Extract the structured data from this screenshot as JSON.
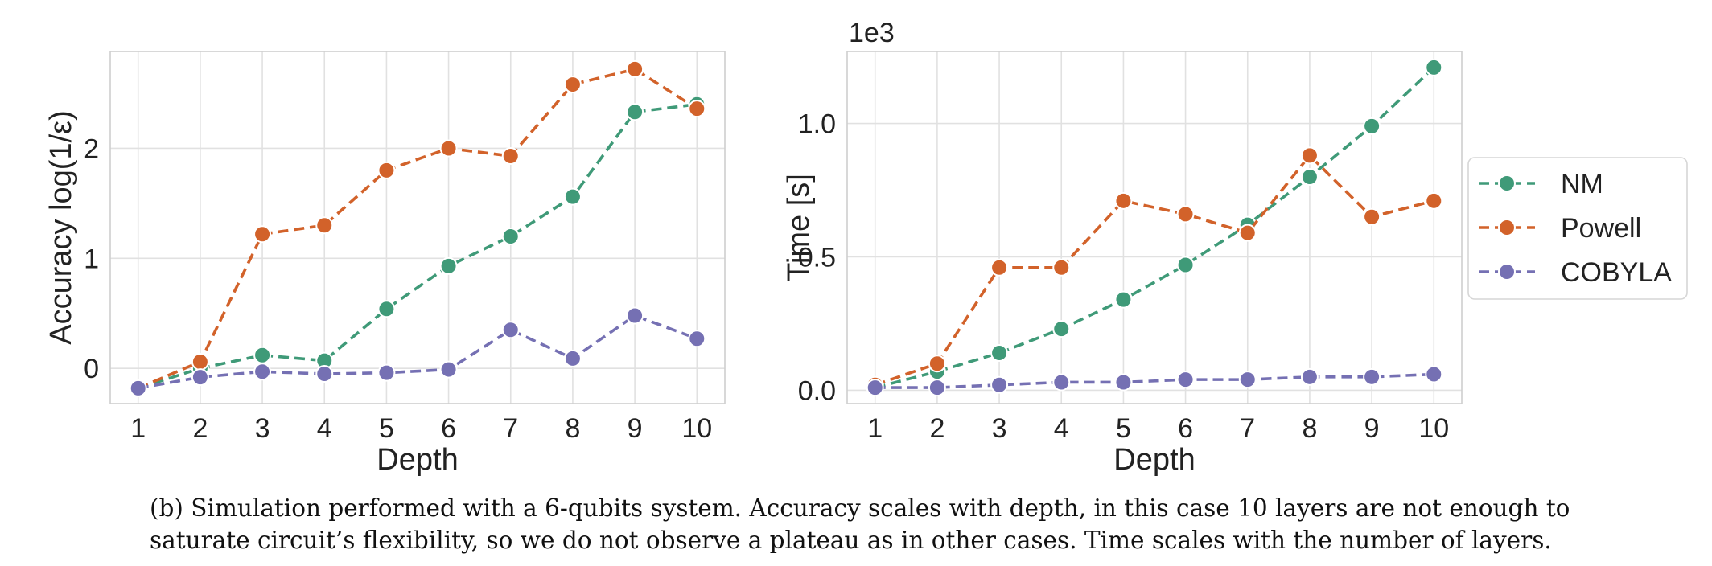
{
  "chart_data": [
    {
      "type": "line",
      "xlabel": "Depth",
      "ylabel": "Accuracy log(1/ε)",
      "x": [
        1,
        2,
        3,
        4,
        5,
        6,
        7,
        8,
        9,
        10
      ],
      "xticks": [
        "1",
        "2",
        "3",
        "4",
        "5",
        "6",
        "7",
        "8",
        "9",
        "10"
      ],
      "yticks": [
        0,
        1,
        2
      ],
      "ylim": [
        -0.32,
        2.88
      ],
      "xlim": [
        0.55,
        10.45
      ],
      "grid": true,
      "series": [
        {
          "name": "NM",
          "color": "#3f9a78",
          "values": [
            -0.18,
            0.0,
            0.12,
            0.07,
            0.54,
            0.93,
            1.2,
            1.56,
            2.33,
            2.4
          ]
        },
        {
          "name": "Powell",
          "color": "#d2622a",
          "values": [
            -0.18,
            0.06,
            1.22,
            1.3,
            1.8,
            2.0,
            1.93,
            2.58,
            2.72,
            2.36
          ]
        },
        {
          "name": "COBYLA",
          "color": "#7570b3",
          "values": [
            -0.18,
            -0.08,
            -0.03,
            -0.05,
            -0.04,
            -0.01,
            0.35,
            0.09,
            0.48,
            0.27
          ]
        }
      ]
    },
    {
      "type": "line",
      "xlabel": "Depth",
      "ylabel": "Time [s]",
      "offset_label": "1e3",
      "x": [
        1,
        2,
        3,
        4,
        5,
        6,
        7,
        8,
        9,
        10
      ],
      "xticks": [
        "1",
        "2",
        "3",
        "4",
        "5",
        "6",
        "7",
        "8",
        "9",
        "10"
      ],
      "yticks": [
        "0.0",
        "0.5",
        "1.0"
      ],
      "ytick_values": [
        0,
        0.5,
        1.0
      ],
      "ylim": [
        -0.05,
        1.27
      ],
      "xlim": [
        0.55,
        10.45
      ],
      "grid": true,
      "legend": "outside-right",
      "legend_entries": [
        "NM",
        "Powell",
        "COBYLA"
      ],
      "series": [
        {
          "name": "NM",
          "color": "#3f9a78",
          "values": [
            0.01,
            0.07,
            0.14,
            0.23,
            0.34,
            0.47,
            0.62,
            0.8,
            0.99,
            1.21
          ]
        },
        {
          "name": "Powell",
          "color": "#d2622a",
          "values": [
            0.02,
            0.1,
            0.46,
            0.46,
            0.71,
            0.66,
            0.59,
            0.88,
            0.65,
            0.71
          ]
        },
        {
          "name": "COBYLA",
          "color": "#7570b3",
          "values": [
            0.01,
            0.01,
            0.02,
            0.03,
            0.03,
            0.04,
            0.04,
            0.05,
            0.05,
            0.06
          ]
        }
      ]
    }
  ],
  "caption": {
    "line1": "(b) Simulation performed with a 6-qubits system. Accuracy scales with depth, in this case 10 layers are not enough to",
    "line2": "saturate circuit’s flexibility, so we do not observe a plateau as in other cases. Time scales with the number of layers."
  }
}
